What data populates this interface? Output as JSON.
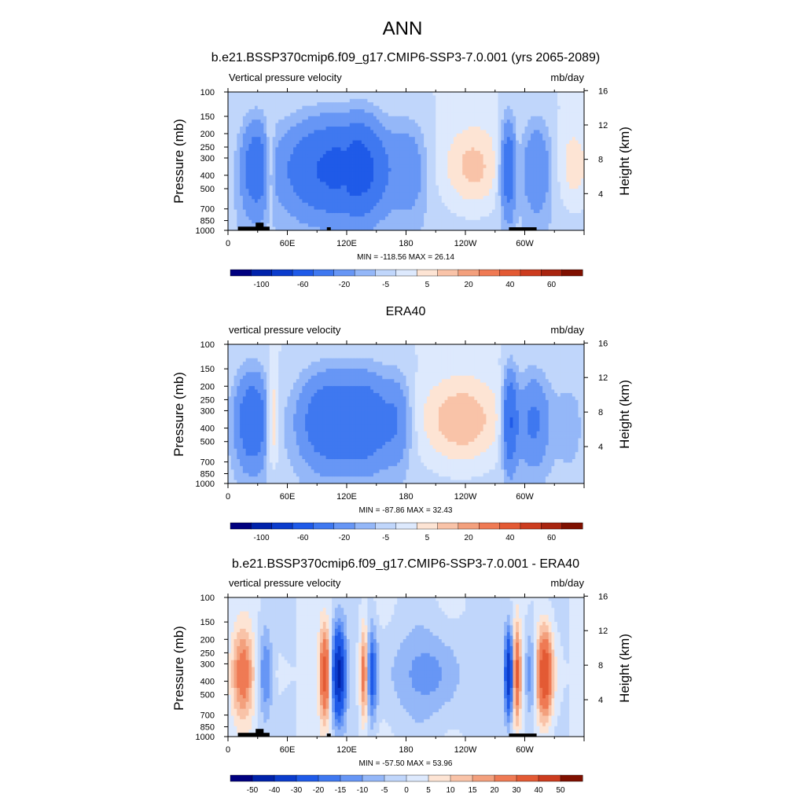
{
  "figure": {
    "title": "ANN"
  },
  "chart_data": [
    {
      "type": "heatmap",
      "title": "b.e21.BSSP370cmip6.f09_g17.CMIP6-SSP3-7.0.001 (yrs 2065-2089)",
      "variable_label": "Vertical pressure velocity",
      "units_label": "mb/day",
      "ylabel": "Pressure (mb)",
      "ylabel_right": "Height (km)",
      "x_tick_labels": [
        "0",
        "60E",
        "120E",
        "180",
        "120W",
        "60W"
      ],
      "y_tick_labels": [
        "100",
        "150",
        "200",
        "250",
        "300",
        "400",
        "500",
        "700",
        "850",
        "1000"
      ],
      "height_tick_labels": [
        "16",
        "12",
        "8",
        "4"
      ],
      "ylim": [
        1000,
        100
      ],
      "xlim_degrees_east": [
        0,
        360
      ],
      "stats_text": "MIN = -118.56  MAX =  26.14",
      "min": -118.56,
      "max": 26.14,
      "colorbar_labels": [
        "-100",
        "-60",
        "-20",
        "-5",
        "5",
        "20",
        "40",
        "60"
      ],
      "colors": [
        "#00007f",
        "#0022aa",
        "#0b3ccc",
        "#1f5ae8",
        "#3f78f0",
        "#6796f5",
        "#94b7f8",
        "#c0d6fb",
        "#dde9fd",
        "#fde4d4",
        "#f9c3a8",
        "#f3a07d",
        "#ef7a54",
        "#e35a34",
        "#cc3c1f",
        "#a8240f",
        "#7f1000"
      ],
      "topography": true
    },
    {
      "type": "heatmap",
      "title": "ERA40",
      "variable_label": "vertical pressure velocity",
      "units_label": "mb/day",
      "ylabel": "Pressure (mb)",
      "ylabel_right": "Height (km)",
      "x_tick_labels": [
        "0",
        "60E",
        "120E",
        "180",
        "120W",
        "60W"
      ],
      "y_tick_labels": [
        "100",
        "150",
        "200",
        "250",
        "300",
        "400",
        "500",
        "700",
        "850",
        "1000"
      ],
      "height_tick_labels": [
        "16",
        "12",
        "8",
        "4"
      ],
      "ylim": [
        1000,
        100
      ],
      "xlim_degrees_east": [
        0,
        360
      ],
      "stats_text": "MIN = -87.86  MAX =  32.43",
      "min": -87.86,
      "max": 32.43,
      "colorbar_labels": [
        "-100",
        "-60",
        "-20",
        "-5",
        "5",
        "20",
        "40",
        "60"
      ],
      "colors": [
        "#00007f",
        "#0022aa",
        "#0b3ccc",
        "#1f5ae8",
        "#3f78f0",
        "#6796f5",
        "#94b7f8",
        "#c0d6fb",
        "#dde9fd",
        "#fde4d4",
        "#f9c3a8",
        "#f3a07d",
        "#ef7a54",
        "#e35a34",
        "#cc3c1f",
        "#a8240f",
        "#7f1000"
      ],
      "topography": false
    },
    {
      "type": "heatmap",
      "title": "b.e21.BSSP370cmip6.f09_g17.CMIP6-SSP3-7.0.001 - ERA40",
      "variable_label": "vertical pressure velocity",
      "units_label": "mb/day",
      "ylabel": "Pressure (mb)",
      "ylabel_right": "Height (km)",
      "x_tick_labels": [
        "0",
        "60E",
        "120E",
        "180",
        "120W",
        "60W"
      ],
      "y_tick_labels": [
        "100",
        "150",
        "200",
        "250",
        "300",
        "400",
        "500",
        "700",
        "850",
        "1000"
      ],
      "height_tick_labels": [
        "16",
        "12",
        "8",
        "4"
      ],
      "ylim": [
        1000,
        100
      ],
      "xlim_degrees_east": [
        0,
        360
      ],
      "stats_text": "MIN = -57.50  MAX =  53.96",
      "min": -57.5,
      "max": 53.96,
      "colorbar_labels": [
        "-50",
        "-40",
        "-30",
        "-20",
        "-15",
        "-10",
        "-5",
        "0",
        "5",
        "10",
        "15",
        "20",
        "30",
        "40",
        "50"
      ],
      "colors": [
        "#00007f",
        "#0022aa",
        "#0b3ccc",
        "#1f5ae8",
        "#3f78f0",
        "#6796f5",
        "#94b7f8",
        "#c0d6fb",
        "#dde9fd",
        "#fde4d4",
        "#f9c3a8",
        "#f3a07d",
        "#ef7a54",
        "#e35a34",
        "#cc3c1f",
        "#7f1000"
      ],
      "topography": true
    }
  ]
}
